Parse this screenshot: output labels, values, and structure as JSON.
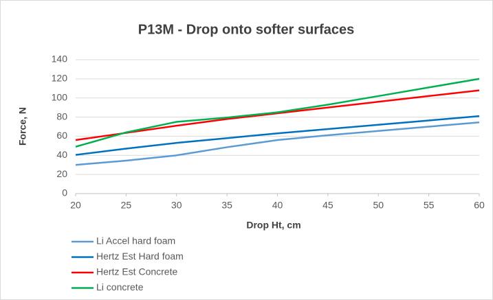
{
  "chart_data": {
    "type": "line",
    "title": "P13M - Drop onto softer surfaces",
    "x_label": "Drop Ht, cm",
    "y_label": "Force, N",
    "x": [
      20,
      25,
      30,
      35,
      40,
      45,
      50,
      55,
      60
    ],
    "series": [
      {
        "name": "Li Accel hard foam",
        "color": "#5b9bd5",
        "values": [
          30,
          34.5,
          40,
          48.5,
          56,
          61,
          65.5,
          70,
          74.5
        ]
      },
      {
        "name": "Hertz Est Hard foam",
        "color": "#0070c0",
        "values": [
          40.5,
          47,
          53,
          58,
          63,
          67.5,
          72,
          76.5,
          81
        ]
      },
      {
        "name": "Hertz Est Concrete",
        "color": "#ff0000",
        "values": [
          56,
          63.5,
          71,
          78,
          84,
          90,
          96,
          102,
          108
        ]
      },
      {
        "name": "Li concrete",
        "color": "#00b050",
        "values": [
          49,
          64,
          75,
          79.5,
          85,
          93,
          102,
          111,
          120
        ]
      }
    ],
    "xlim": [
      20,
      60
    ],
    "xticks": [
      20,
      25,
      30,
      35,
      40,
      45,
      50,
      55,
      60
    ],
    "ylim": [
      0,
      140
    ],
    "yticks": [
      0,
      20,
      40,
      60,
      80,
      100,
      120,
      140
    ],
    "grid": true,
    "legend": "bottom-left"
  }
}
